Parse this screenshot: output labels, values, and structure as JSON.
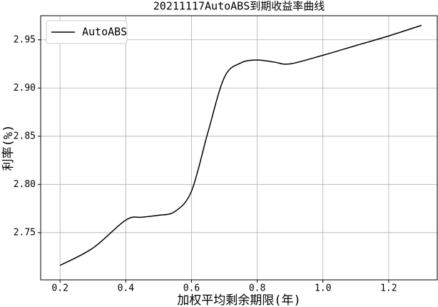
{
  "chart_data": {
    "type": "line",
    "title": "20211117AutoABS到期收益率曲线",
    "x_label": "加权平均剩余期限(年)",
    "y_label": "利率(%)",
    "x": [
      0.2,
      0.3,
      0.4,
      0.45,
      0.5,
      0.55,
      0.6,
      0.65,
      0.7,
      0.75,
      0.8,
      0.85,
      0.9,
      1.0,
      1.1,
      1.2,
      1.3
    ],
    "series": [
      {
        "name": "AutoABS",
        "color": "#000000",
        "values": [
          2.716,
          2.734,
          2.763,
          2.766,
          2.768,
          2.772,
          2.793,
          2.854,
          2.911,
          2.926,
          2.929,
          2.927,
          2.925,
          2.934,
          2.944,
          2.954,
          2.965
        ]
      }
    ],
    "xlim": [
      0.141,
      1.348
    ],
    "ylim": [
      2.701,
      2.975
    ],
    "xticks": [
      0.2,
      0.4,
      0.6,
      0.8,
      {
        "value": 1.0,
        "label": "1.0"
      },
      1.2
    ],
    "yticks": [
      2.75,
      {
        "value": 2.8,
        "label": "2.80"
      },
      2.85,
      {
        "value": 2.9,
        "label": "2.90"
      },
      2.95
    ],
    "grid": true,
    "legend": "upper left"
  }
}
